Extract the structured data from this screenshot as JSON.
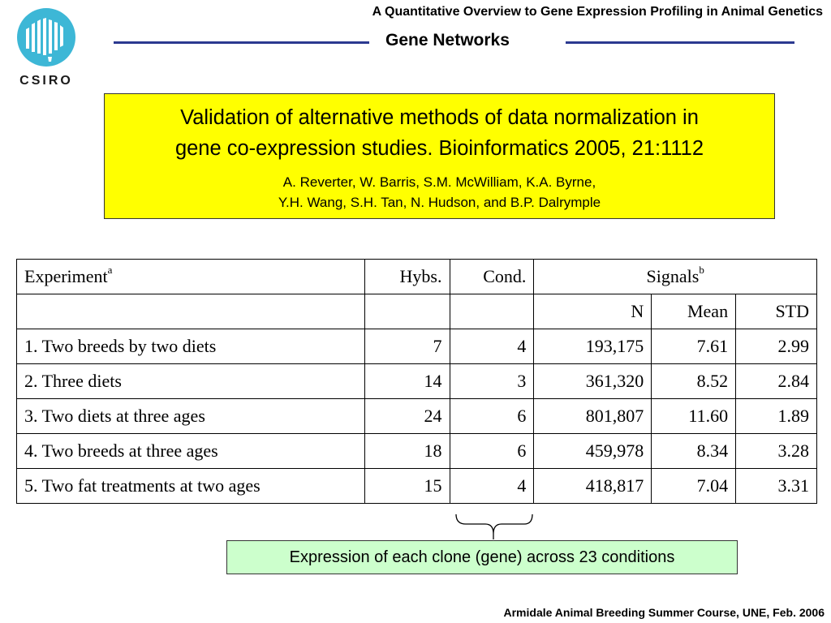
{
  "logo": {
    "label": "CSIRO"
  },
  "header": {
    "top_title": "A Quantitative Overview to Gene Expression Profiling in Animal Genetics",
    "section_title": "Gene Networks",
    "rule_color": "#2b3990"
  },
  "citation": {
    "title_line1": "Validation of alternative methods of data normalization in",
    "title_line2": "gene co-expression studies. Bioinformatics 2005, 21:1112",
    "authors_line1": "A. Reverter, W. Barris, S.M. McWilliam, K.A. Byrne,",
    "authors_line2": "Y.H. Wang, S.H. Tan, N. Hudson, and B.P. Dalrymple",
    "background": "#ffff00"
  },
  "table": {
    "headers": {
      "experiment": "Experiment",
      "experiment_sup": "a",
      "hybs": "Hybs.",
      "cond": "Cond.",
      "signals": "Signals",
      "signals_sup": "b"
    },
    "subheaders": {
      "n": "N",
      "mean": "Mean",
      "std": "STD"
    },
    "rows": [
      {
        "experiment": "1. Two breeds by two diets",
        "hybs": "7",
        "cond": "4",
        "n": "193,175",
        "mean": "7.61",
        "std": "2.99"
      },
      {
        "experiment": "2. Three diets",
        "hybs": "14",
        "cond": "3",
        "n": "361,320",
        "mean": "8.52",
        "std": "2.84"
      },
      {
        "experiment": "3. Two diets at three ages",
        "hybs": "24",
        "cond": "6",
        "n": "801,807",
        "mean": "11.60",
        "std": "1.89"
      },
      {
        "experiment": "4. Two breeds at three ages",
        "hybs": "18",
        "cond": "6",
        "n": "459,978",
        "mean": "8.34",
        "std": "3.28"
      },
      {
        "experiment": "5. Two fat treatments at two ages",
        "hybs": "15",
        "cond": "4",
        "n": "418,817",
        "mean": "7.04",
        "std": "3.31"
      }
    ]
  },
  "callout": {
    "text": "Expression of each clone (gene) across 23 conditions",
    "background": "#ccffcc"
  },
  "footer": {
    "text": "Armidale Animal Breeding Summer Course, UNE, Feb. 2006"
  }
}
